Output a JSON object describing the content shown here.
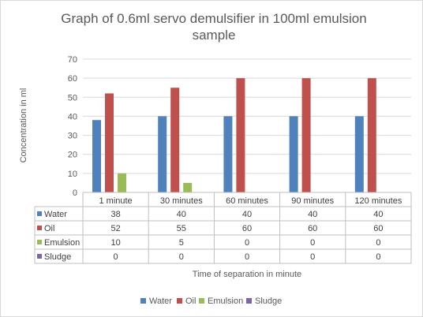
{
  "chart_data": {
    "type": "bar",
    "title": "Graph of 0.6ml servo demulsifier in 100ml emulsion sample",
    "title_lines": [
      "Graph of 0.6ml servo demulsifier in 100ml emulsion",
      "sample"
    ],
    "xlabel": "Time of separation in minute",
    "ylabel": "Concentration in ml",
    "ylim": [
      0,
      70
    ],
    "yticks": [
      0,
      10,
      20,
      30,
      40,
      50,
      60,
      70
    ],
    "grid": true,
    "legend_position": "bottom",
    "data_table": true,
    "categories": [
      "1 minute",
      "30 minutes",
      "60 minutes",
      "90 minutes",
      "120 minutes"
    ],
    "series": [
      {
        "name": "Water",
        "color": "#4f81bd",
        "values": [
          38,
          40,
          40,
          40,
          40
        ]
      },
      {
        "name": "Oil",
        "color": "#c0504d",
        "values": [
          52,
          55,
          60,
          60,
          60
        ]
      },
      {
        "name": "Emulsion",
        "color": "#9bbb59",
        "values": [
          10,
          5,
          0,
          0,
          0
        ]
      },
      {
        "name": "Sludge",
        "color": "#8064a2",
        "values": [
          0,
          0,
          0,
          0,
          0
        ]
      }
    ]
  }
}
